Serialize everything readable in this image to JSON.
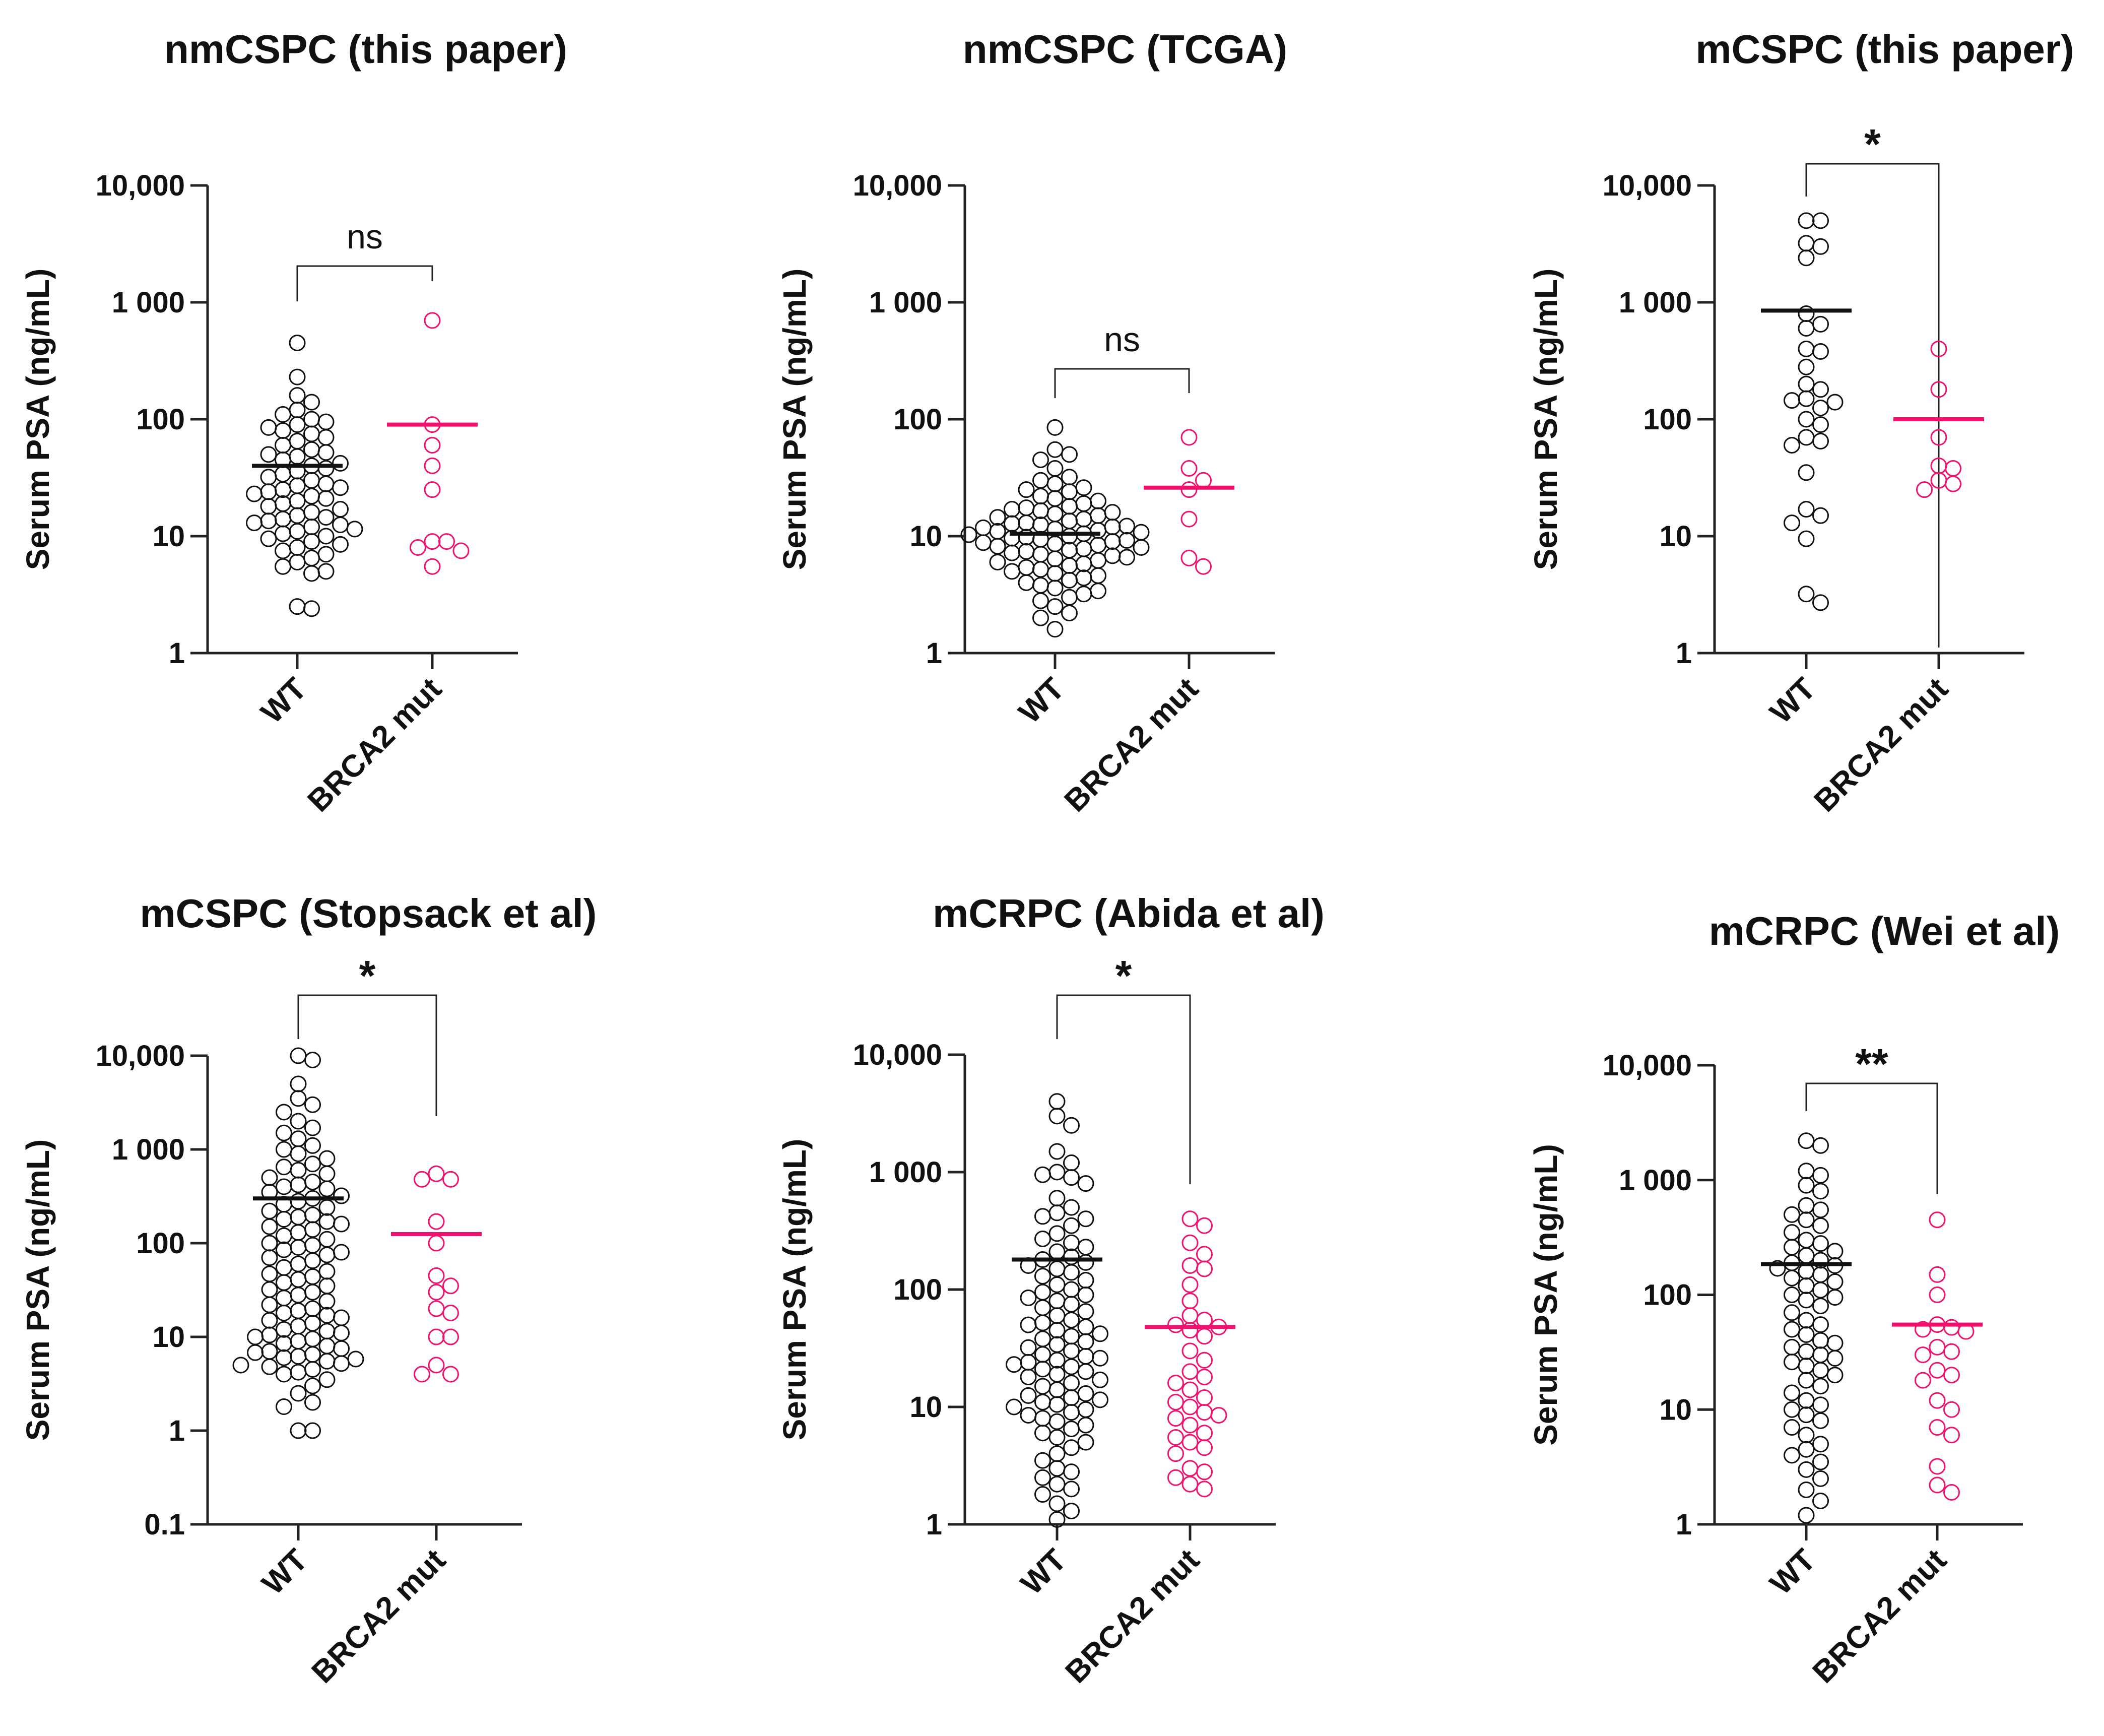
{
  "chart_data": [
    {
      "type": "scatter",
      "title": "nmCSPC (this paper)",
      "ylabel": "Serum PSA (ng/mL)",
      "yscale": "log",
      "ylim": [
        1,
        10000
      ],
      "yticks": [
        1,
        10,
        100,
        1000,
        10000
      ],
      "ytick_labels": [
        "1",
        "10",
        "100",
        "1 000",
        "10,000"
      ],
      "categories": [
        "WT",
        "BRCA2 mut"
      ],
      "significance": "ns",
      "series": [
        {
          "name": "WT",
          "color": "#111111",
          "median": 40,
          "values": [
            450,
            230,
            160,
            140,
            120,
            110,
            100,
            95,
            90,
            85,
            80,
            75,
            70,
            65,
            60,
            55,
            52,
            50,
            48,
            45,
            42,
            40,
            38,
            36,
            34,
            32,
            30,
            28,
            27,
            26,
            25,
            24,
            23,
            22,
            21,
            20,
            19,
            18,
            17,
            16,
            15,
            14.5,
            14,
            13.5,
            13,
            12.5,
            12,
            11.5,
            11,
            10.5,
            10,
            9.5,
            9,
            8.5,
            8,
            7.5,
            7,
            6.5,
            6,
            5.5,
            5,
            4.8,
            2.5,
            2.4
          ]
        },
        {
          "name": "BRCA2 mut",
          "color": "#f0126e",
          "median": 90,
          "values": [
            700,
            90,
            60,
            40,
            25,
            9,
            9,
            8,
            7.5,
            5.5
          ]
        }
      ]
    },
    {
      "type": "scatter",
      "title": "nmCSPC (TCGA)",
      "ylabel": "Serum PSA (ng/mL)",
      "yscale": "log",
      "ylim": [
        1,
        10000
      ],
      "yticks": [
        1,
        10,
        100,
        1000,
        10000
      ],
      "ytick_labels": [
        "1",
        "10",
        "100",
        "1 000",
        "10,000"
      ],
      "categories": [
        "WT",
        "BRCA2 mut"
      ],
      "significance": "ns",
      "series": [
        {
          "name": "WT",
          "color": "#111111",
          "median": 10.5,
          "values": [
            85,
            55,
            50,
            45,
            38,
            32,
            30,
            28,
            26,
            25,
            24,
            22,
            21,
            20,
            19,
            18,
            17.5,
            17,
            16.5,
            16,
            15.5,
            15,
            14.5,
            14,
            13.5,
            13,
            12.8,
            12.5,
            12.2,
            12,
            11.8,
            11.5,
            11.2,
            11,
            10.8,
            10.5,
            10.3,
            10,
            9.8,
            9.6,
            9.4,
            9.2,
            9,
            8.8,
            8.6,
            8.4,
            8.2,
            8,
            7.8,
            7.6,
            7.4,
            7.2,
            7,
            6.8,
            6.6,
            6.4,
            6.2,
            6,
            5.8,
            5.6,
            5.4,
            5.2,
            5,
            4.8,
            4.6,
            4.4,
            4.2,
            4,
            3.8,
            3.6,
            3.4,
            3.2,
            3,
            2.8,
            2.5,
            2.2,
            2,
            1.6
          ]
        },
        {
          "name": "BRCA2 mut",
          "color": "#f0126e",
          "median": 26,
          "values": [
            70,
            38,
            30,
            25,
            14,
            6.5,
            5.5
          ]
        }
      ]
    },
    {
      "type": "scatter",
      "title": "mCSPC (this paper)",
      "ylabel": "Serum PSA (ng/mL)",
      "yscale": "log",
      "ylim": [
        1,
        10000
      ],
      "yticks": [
        1,
        10,
        100,
        1000,
        10000
      ],
      "ytick_labels": [
        "1",
        "10",
        "100",
        "1 000",
        "10,000"
      ],
      "categories": [
        "WT",
        "BRCA2 mut"
      ],
      "significance": "*",
      "series": [
        {
          "name": "WT",
          "color": "#111111",
          "median": 850,
          "values": [
            5000,
            5000,
            3200,
            3000,
            2400,
            800,
            650,
            600,
            400,
            380,
            280,
            200,
            180,
            150,
            145,
            140,
            125,
            100,
            90,
            70,
            65,
            60,
            35,
            17,
            15,
            13,
            9.5,
            3.2,
            2.7
          ]
        },
        {
          "name": "BRCA2 mut",
          "color": "#f0126e",
          "median": 100,
          "values": [
            400,
            180,
            70,
            40,
            38,
            30,
            28,
            25
          ]
        }
      ]
    },
    {
      "type": "scatter",
      "title": "mCSPC (Stopsack et al)",
      "ylabel": "Serum PSA (ng/mL)",
      "yscale": "log",
      "ylim": [
        0.1,
        10000
      ],
      "yticks": [
        0.1,
        1,
        10,
        100,
        1000,
        10000
      ],
      "ytick_labels": [
        "0.1",
        "1",
        "10",
        "100",
        "1 000",
        "10,000"
      ],
      "categories": [
        "WT",
        "BRCA2 mut"
      ],
      "significance": "*",
      "series": [
        {
          "name": "WT",
          "color": "#111111",
          "median": 300,
          "values": [
            10000,
            9000,
            5000,
            3500,
            3000,
            2500,
            2000,
            1700,
            1500,
            1300,
            1100,
            1000,
            900,
            800,
            700,
            650,
            600,
            550,
            500,
            450,
            420,
            400,
            380,
            350,
            320,
            300,
            280,
            260,
            240,
            220,
            200,
            190,
            180,
            170,
            160,
            150,
            140,
            130,
            120,
            110,
            100,
            95,
            90,
            85,
            80,
            75,
            70,
            65,
            60,
            55,
            50,
            47,
            44,
            41,
            38,
            35,
            32,
            30,
            28,
            26,
            24,
            22,
            20,
            19,
            18,
            17,
            16,
            15,
            14,
            13,
            12,
            11.5,
            11,
            10.5,
            10,
            9.5,
            9,
            8.5,
            8,
            7.5,
            7,
            6.8,
            6.5,
            6.2,
            6,
            5.8,
            5.5,
            5.2,
            5,
            4.8,
            4.5,
            4.2,
            4,
            3.5,
            3,
            2.5,
            2,
            1.8,
            1,
            1
          ]
        },
        {
          "name": "BRCA2 mut",
          "color": "#f0126e",
          "median": 125,
          "values": [
            550,
            480,
            480,
            170,
            100,
            45,
            35,
            30,
            20,
            18,
            10,
            10,
            5,
            4,
            4
          ]
        }
      ]
    },
    {
      "type": "scatter",
      "title": "mCRPC  (Abida et al)",
      "ylabel": "Serum PSA (ng/mL)",
      "yscale": "log",
      "ylim": [
        1,
        10000
      ],
      "yticks": [
        1,
        10,
        100,
        1000,
        10000
      ],
      "ytick_labels": [
        "1",
        "10",
        "100",
        "1 000",
        "10,000"
      ],
      "categories": [
        "WT",
        "BRCA2 mut"
      ],
      "significance": "*",
      "series": [
        {
          "name": "WT",
          "color": "#111111",
          "median": 180,
          "values": [
            4000,
            3000,
            2500,
            1500,
            1200,
            1000,
            950,
            900,
            800,
            600,
            500,
            450,
            420,
            400,
            350,
            300,
            270,
            250,
            230,
            210,
            190,
            180,
            170,
            160,
            150,
            140,
            130,
            120,
            110,
            100,
            95,
            90,
            85,
            80,
            75,
            70,
            65,
            60,
            55,
            52,
            50,
            48,
            45,
            42,
            40,
            38,
            36,
            34,
            32,
            30,
            28,
            27,
            26,
            25,
            24,
            23,
            22,
            21,
            20,
            19,
            18,
            17,
            16,
            15,
            14,
            13,
            12.5,
            12,
            11.5,
            11,
            10.5,
            10,
            9.5,
            9,
            8.5,
            8,
            7.5,
            7,
            6.5,
            6,
            5.5,
            5,
            4.5,
            4,
            3.5,
            3,
            2.8,
            2.5,
            2.2,
            2,
            1.8,
            1.5,
            1.3,
            1.1
          ]
        },
        {
          "name": "BRCA2 mut",
          "color": "#f0126e",
          "median": 48,
          "values": [
            400,
            350,
            250,
            200,
            160,
            150,
            110,
            80,
            60,
            55,
            50,
            48,
            45,
            40,
            30,
            25,
            20,
            18,
            16,
            14,
            12,
            11,
            10,
            9,
            8.5,
            8,
            7,
            6,
            5.5,
            5,
            4.5,
            4,
            3,
            2.8,
            2.5,
            2.2,
            2
          ]
        }
      ]
    },
    {
      "type": "scatter",
      "title": "mCRPC (Wei et al)",
      "ylabel": "Serum PSA (ng/mL)",
      "yscale": "log",
      "ylim": [
        1,
        10000
      ],
      "yticks": [
        1,
        10,
        100,
        1000,
        10000
      ],
      "ytick_labels": [
        "1",
        "10",
        "100",
        "1 000",
        "10,000"
      ],
      "categories": [
        "WT",
        "BRCA2 mut"
      ],
      "significance": "**",
      "series": [
        {
          "name": "WT",
          "color": "#111111",
          "median": 185,
          "values": [
            2200,
            2000,
            1200,
            1100,
            900,
            800,
            600,
            550,
            500,
            450,
            400,
            350,
            300,
            280,
            260,
            240,
            220,
            200,
            190,
            180,
            170,
            160,
            150,
            140,
            130,
            120,
            110,
            100,
            95,
            90,
            80,
            70,
            60,
            55,
            50,
            45,
            40,
            38,
            35,
            32,
            30,
            28,
            26,
            24,
            22,
            20,
            18,
            16,
            14,
            12,
            11,
            10,
            9,
            8,
            7,
            6,
            5,
            4.5,
            4,
            3.5,
            3,
            2.5,
            2,
            1.6,
            1.2
          ]
        },
        {
          "name": "BRCA2 mut",
          "color": "#f0126e",
          "median": 55,
          "values": [
            450,
            150,
            100,
            55,
            52,
            50,
            48,
            35,
            32,
            30,
            22,
            20,
            18,
            12,
            10,
            7,
            6,
            3.2,
            2.2,
            1.9
          ]
        }
      ]
    }
  ]
}
